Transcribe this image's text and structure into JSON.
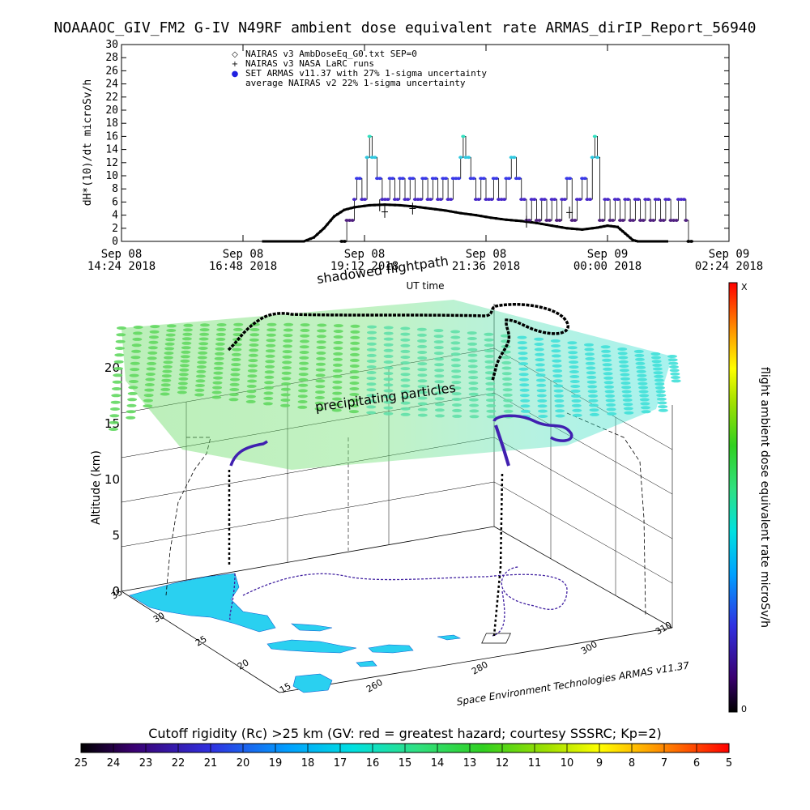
{
  "title": "NOAAAOC_GIV_FM2 G-IV   N49RF  ambient dose equivalent rate ARMAS_dirIP_Report_56940",
  "chart_data": [
    {
      "type": "line",
      "ylabel": "dH*(10)/dt microSv/h",
      "xlabel": "UT time",
      "ylim": [
        0,
        30
      ],
      "yticks": [
        0,
        2,
        4,
        6,
        8,
        10,
        12,
        14,
        16,
        18,
        20,
        22,
        24,
        26,
        28,
        30
      ],
      "xticks": [
        {
          "l1": "Sep 08",
          "l2": "14:24 2018",
          "h": 14.4
        },
        {
          "l1": "Sep 08",
          "l2": "16:48 2018",
          "h": 16.8
        },
        {
          "l1": "Sep 08",
          "l2": "19:12 2018",
          "h": 19.2
        },
        {
          "l1": "Sep 08",
          "l2": "21:36 2018",
          "h": 21.6
        },
        {
          "l1": "Sep 09",
          "l2": "00:00 2018",
          "h": 24.0
        },
        {
          "l1": "Sep 09",
          "l2": "02:24 2018",
          "h": 26.4
        }
      ],
      "xlim_hours": [
        14.4,
        26.4
      ],
      "legend": [
        {
          "symbol": "◇",
          "label": "NAIRAS v3 AmbDoseEq_G0.txt SEP=0"
        },
        {
          "symbol": "+",
          "label": "NAIRAS v3 NASA LaRC runs"
        },
        {
          "symbol": "●",
          "label": "SET ARMAS v11.37 with 27% 1-sigma uncertainty"
        },
        {
          "symbol": "",
          "label": "average NAIRAS v2 22% 1-sigma uncertainty"
        }
      ],
      "series": [
        {
          "name": "NAIRAS v3 AmbDoseEq_G0.txt SEP=0",
          "color": "#000000",
          "points": [
            [
              17.2,
              0
            ],
            [
              18.0,
              0
            ],
            [
              18.2,
              0.6
            ],
            [
              18.4,
              2
            ],
            [
              18.6,
              3.8
            ],
            [
              18.8,
              4.8
            ],
            [
              19.0,
              5.2
            ],
            [
              19.3,
              5.5
            ],
            [
              19.6,
              5.6
            ],
            [
              19.9,
              5.5
            ],
            [
              20.2,
              5.3
            ],
            [
              20.5,
              5.0
            ],
            [
              20.8,
              4.7
            ],
            [
              21.1,
              4.3
            ],
            [
              21.4,
              4.0
            ],
            [
              21.7,
              3.6
            ],
            [
              22.0,
              3.3
            ],
            [
              22.3,
              3.1
            ],
            [
              22.6,
              2.8
            ],
            [
              22.9,
              2.4
            ],
            [
              23.2,
              2.0
            ],
            [
              23.5,
              1.8
            ],
            [
              23.8,
              2.1
            ],
            [
              24.0,
              2.4
            ],
            [
              24.2,
              2.2
            ],
            [
              24.35,
              1.2
            ],
            [
              24.5,
              0.2
            ],
            [
              24.6,
              0
            ],
            [
              25.2,
              0
            ]
          ]
        },
        {
          "name": "SET ARMAS v11.37 with 27% 1-sigma uncertainty",
          "points": [
            [
              18.75,
              0
            ],
            [
              18.85,
              3.2
            ],
            [
              19.0,
              6.4
            ],
            [
              19.05,
              9.6
            ],
            [
              19.15,
              6.4
            ],
            [
              19.25,
              12.8
            ],
            [
              19.3,
              16
            ],
            [
              19.35,
              12.8
            ],
            [
              19.45,
              9.6
            ],
            [
              19.55,
              6.4
            ],
            [
              19.7,
              9.6
            ],
            [
              19.8,
              6.4
            ],
            [
              19.9,
              9.6
            ],
            [
              20.0,
              6.4
            ],
            [
              20.1,
              9.6
            ],
            [
              20.2,
              6.4
            ],
            [
              20.35,
              9.6
            ],
            [
              20.45,
              6.4
            ],
            [
              20.55,
              9.6
            ],
            [
              20.65,
              6.4
            ],
            [
              20.75,
              9.6
            ],
            [
              20.85,
              6.4
            ],
            [
              20.95,
              9.6
            ],
            [
              21.1,
              12.8
            ],
            [
              21.15,
              16
            ],
            [
              21.2,
              12.8
            ],
            [
              21.3,
              9.6
            ],
            [
              21.4,
              6.4
            ],
            [
              21.5,
              9.6
            ],
            [
              21.6,
              6.4
            ],
            [
              21.75,
              9.6
            ],
            [
              21.85,
              6.4
            ],
            [
              22.0,
              9.6
            ],
            [
              22.1,
              12.8
            ],
            [
              22.2,
              9.6
            ],
            [
              22.3,
              6.4
            ],
            [
              22.4,
              3.2
            ],
            [
              22.5,
              6.4
            ],
            [
              22.6,
              3.2
            ],
            [
              22.7,
              6.4
            ],
            [
              22.8,
              3.2
            ],
            [
              22.9,
              6.4
            ],
            [
              23.0,
              3.2
            ],
            [
              23.1,
              6.4
            ],
            [
              23.2,
              9.6
            ],
            [
              23.3,
              3.2
            ],
            [
              23.4,
              6.4
            ],
            [
              23.5,
              9.6
            ],
            [
              23.6,
              6.4
            ],
            [
              23.7,
              12.8
            ],
            [
              23.75,
              16
            ],
            [
              23.8,
              12.8
            ],
            [
              23.85,
              3.2
            ],
            [
              23.95,
              6.4
            ],
            [
              24.05,
              3.2
            ],
            [
              24.15,
              6.4
            ],
            [
              24.25,
              3.2
            ],
            [
              24.35,
              6.4
            ],
            [
              24.45,
              3.2
            ],
            [
              24.55,
              6.4
            ],
            [
              24.65,
              3.2
            ],
            [
              24.75,
              6.4
            ],
            [
              24.85,
              3.2
            ],
            [
              24.95,
              6.4
            ],
            [
              25.05,
              3.2
            ],
            [
              25.15,
              6.4
            ],
            [
              25.25,
              3.2
            ],
            [
              25.4,
              6.4
            ],
            [
              25.55,
              3.2
            ],
            [
              25.6,
              0
            ]
          ]
        }
      ]
    },
    {
      "type": "scatter",
      "annotations": [
        "shadowed flightpath",
        "precipitating particles",
        "Space Environment Technologies ARMAS v11.37"
      ],
      "zlabel": "Altitude (km)",
      "zticks": [
        "0",
        "5",
        "10",
        "15",
        "20"
      ],
      "lat_ticks": [
        "35",
        "30",
        "25",
        "20",
        "15"
      ],
      "lon_ticks": [
        "260",
        "280",
        "300",
        "310"
      ],
      "colorbar": {
        "label": "flight ambient dose equivalent rate microSv/h",
        "max_label": "X",
        "min_label": "0"
      }
    }
  ],
  "rc_colorbar": {
    "title": "Cutoff rigidity (Rc) >25 km (GV: red = greatest hazard; courtesy SSSRC; Kp=2)",
    "labels": [
      "25",
      "24",
      "23",
      "22",
      "21",
      "20",
      "19",
      "18",
      "17",
      "16",
      "15",
      "14",
      "13",
      "12",
      "11",
      "10",
      "9",
      "8",
      "7",
      "6",
      "5"
    ]
  }
}
